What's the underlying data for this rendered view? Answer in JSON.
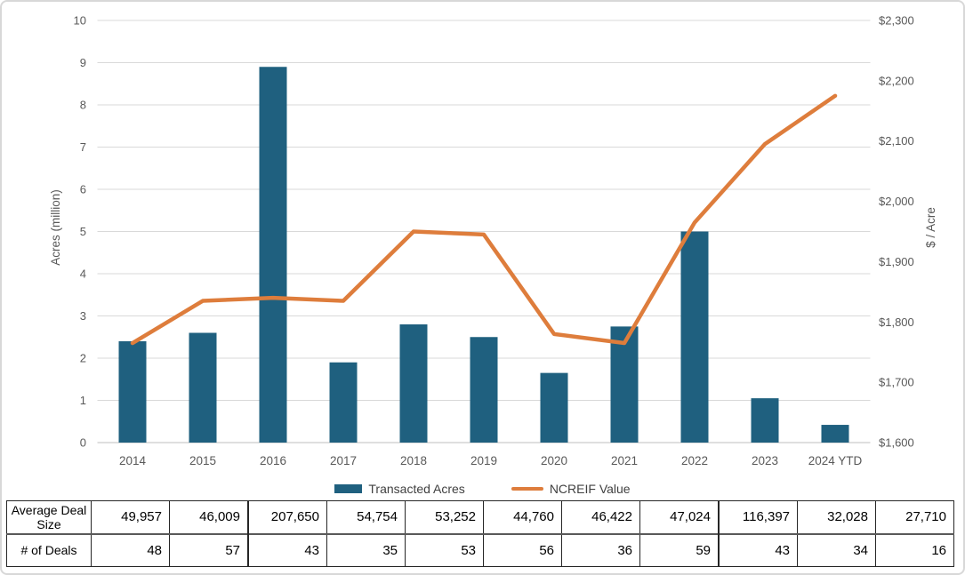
{
  "colors": {
    "bar": "#1F607F",
    "line": "#DE7D3C",
    "grid": "#D9D9D9",
    "axis_line": "#BFBFBF",
    "axis_text": "#595959",
    "legend_text": "#404040",
    "table_border": "#262626"
  },
  "chart_data": {
    "type": "bar+line combo",
    "categories": [
      "2014",
      "2015",
      "2016",
      "2017",
      "2018",
      "2019",
      "2020",
      "2021",
      "2022",
      "2023",
      "2024 YTD"
    ],
    "series": [
      {
        "name": "Transacted Acres",
        "type": "bar",
        "axis": "left",
        "values": [
          2.4,
          2.6,
          8.9,
          1.9,
          2.8,
          2.5,
          1.65,
          2.75,
          5.0,
          1.05,
          0.42
        ]
      },
      {
        "name": "NCREIF Value",
        "type": "line",
        "axis": "right",
        "values": [
          1765,
          1835,
          1840,
          1835,
          1950,
          1945,
          1780,
          1765,
          1965,
          2095,
          2175
        ]
      }
    ],
    "left_axis": {
      "title": "Acres (million)",
      "min": 0,
      "max": 10,
      "ticks": [
        "0",
        "1",
        "2",
        "3",
        "4",
        "5",
        "6",
        "7",
        "8",
        "9",
        "10"
      ]
    },
    "right_axis": {
      "title": "$ / Acre",
      "min": 1600,
      "max": 2300,
      "ticks": [
        "$1,600",
        "$1,700",
        "$1,800",
        "$1,900",
        "$2,000",
        "$2,100",
        "$2,200",
        "$2,300"
      ]
    },
    "grid": true,
    "legend_position": "bottom"
  },
  "table": {
    "row_headers": [
      "Average Deal Size",
      "# of Deals"
    ],
    "rows": [
      [
        "49,957",
        "46,009",
        "207,650",
        "54,754",
        "53,252",
        "44,760",
        "46,422",
        "47,024",
        "116,397",
        "32,028",
        "27,710"
      ],
      [
        "48",
        "57",
        "43",
        "35",
        "53",
        "56",
        "36",
        "59",
        "43",
        "34",
        "16"
      ]
    ],
    "thick_divider_before_columns": [
      2,
      8
    ]
  }
}
